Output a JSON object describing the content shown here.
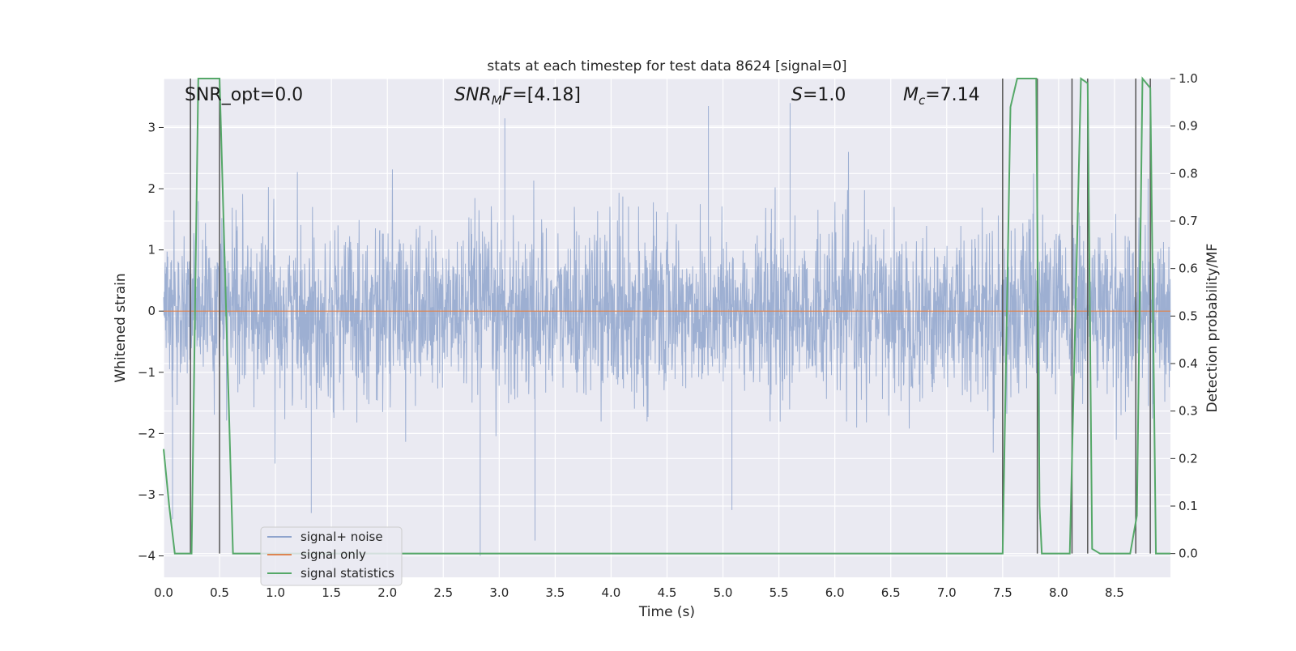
{
  "chart_data": {
    "type": "line",
    "title": "stats at each timestep for test data 8624 [signal=0]",
    "xlabel": "Time (s)",
    "ylabel_left": "Whitened strain",
    "ylabel_right": "Detection probability/MF",
    "xlim": [
      0.0,
      9.0
    ],
    "ylim_left": [
      -4.35,
      3.8
    ],
    "ylim_right": [
      -0.05,
      1.0
    ],
    "x_ticks": [
      "0.0",
      "0.5",
      "1.0",
      "1.5",
      "2.0",
      "2.5",
      "3.0",
      "3.5",
      "4.0",
      "4.5",
      "5.0",
      "5.5",
      "6.0",
      "6.5",
      "7.0",
      "7.5",
      "8.0",
      "8.5"
    ],
    "x_tick_values": [
      0.0,
      0.5,
      1.0,
      1.5,
      2.0,
      2.5,
      3.0,
      3.5,
      4.0,
      4.5,
      5.0,
      5.5,
      6.0,
      6.5,
      7.0,
      7.5,
      8.0,
      8.5
    ],
    "y_left_ticks": [
      "3",
      "2",
      "1",
      "0",
      "−1",
      "−2",
      "−3",
      "−4"
    ],
    "y_left_tick_values": [
      3,
      2,
      1,
      0,
      -1,
      -2,
      -3,
      -4
    ],
    "y_right_ticks": [
      "1.0",
      "0.9",
      "0.8",
      "0.7",
      "0.6",
      "0.5",
      "0.4",
      "0.3",
      "0.2",
      "0.1",
      "0.0"
    ],
    "y_right_tick_values": [
      1.0,
      0.9,
      0.8,
      0.7,
      0.6,
      0.5,
      0.4,
      0.3,
      0.2,
      0.1,
      0.0
    ],
    "grid": true,
    "legend_position": "bottom-left",
    "annotations": {
      "snr_opt": "SNR_opt=0.0",
      "snr_mf_base": "SNR",
      "snr_mf_sub": "M",
      "snr_mf_tail": "F",
      "snr_mf_value": "=[4.18]",
      "s_symbol": "S",
      "s_value": "=1.0",
      "mc_symbol": "M",
      "mc_sub": "c",
      "mc_value": "=7.14"
    },
    "series": [
      {
        "name": "signal+ noise",
        "color": "#8fa4cd",
        "axis": "left",
        "description": "whitened noise, approx. Gaussian, typical amplitude ~0.6, extremes ~3.4",
        "extremes": [
          [
            0.08,
            -3.4
          ],
          [
            1.32,
            -3.3
          ],
          [
            2.83,
            -4.0
          ],
          [
            3.32,
            -3.75
          ],
          [
            5.6,
            3.4
          ],
          [
            5.08,
            -3.25
          ],
          [
            7.83,
            -3.4
          ],
          [
            3.05,
            3.15
          ],
          [
            4.87,
            3.35
          ]
        ]
      },
      {
        "name": "signal only",
        "color": "#dd8452",
        "axis": "left",
        "x": [
          0.0,
          9.0
        ],
        "y": [
          0.0,
          0.0
        ]
      },
      {
        "name": "signal statistics",
        "color": "#55a868",
        "axis": "right",
        "x": [
          0.0,
          0.05,
          0.1,
          0.25,
          0.31,
          0.5,
          0.62,
          3.2,
          5.05,
          5.12,
          7.5,
          7.57,
          7.63,
          7.8,
          7.83,
          7.85,
          8.0,
          8.1,
          8.2,
          8.26,
          8.3,
          8.37,
          8.64,
          8.7,
          8.75,
          8.82,
          8.87,
          8.95,
          9.0
        ],
        "y": [
          0.22,
          0.1,
          0.0,
          0.0,
          1.0,
          1.0,
          0.0,
          0.0,
          0.0,
          0.0,
          0.0,
          0.94,
          1.0,
          1.0,
          0.1,
          0.0,
          0.0,
          0.0,
          1.0,
          0.99,
          0.01,
          0.0,
          0.0,
          0.08,
          1.0,
          0.98,
          0.0,
          0.0,
          0.0
        ]
      }
    ],
    "vertical_markers": [
      0.24,
      0.5,
      7.5,
      7.81,
      8.12,
      8.26,
      8.69,
      8.82
    ],
    "legend": [
      "signal+ noise",
      "signal only",
      "signal statistics"
    ]
  }
}
